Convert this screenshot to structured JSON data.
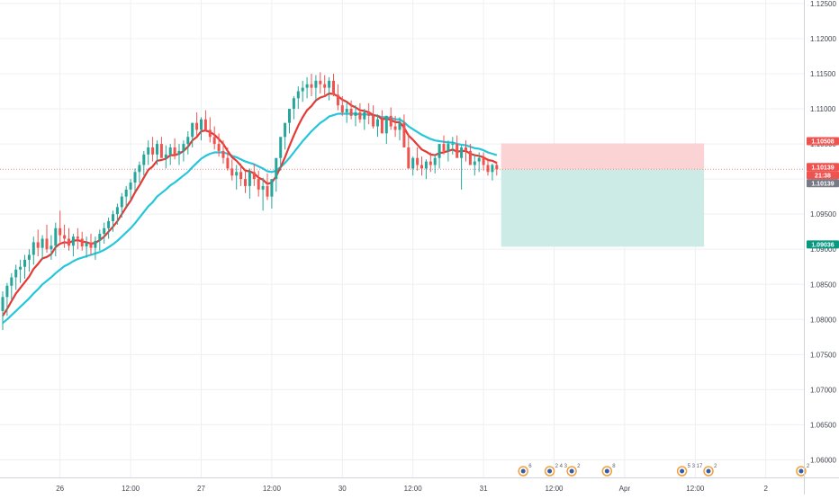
{
  "chart_data": {
    "type": "candlestick",
    "title": "",
    "xlabel": "",
    "ylabel": "",
    "ylim": [
      1.0575,
      1.1255
    ],
    "y_ticks": [
      "1.12500",
      "1.12000",
      "1.11500",
      "1.11000",
      "1.10500",
      "1.10000",
      "1.09500",
      "1.09000",
      "1.08500",
      "1.08000",
      "1.07500",
      "1.07000",
      "1.06500",
      "1.06000"
    ],
    "y_tick_values": [
      1.125,
      1.12,
      1.115,
      1.11,
      1.105,
      1.1,
      1.095,
      1.09,
      1.085,
      1.08,
      1.075,
      1.07,
      1.065,
      1.06
    ],
    "x_ticks": [
      {
        "label": "26",
        "bar": 13
      },
      {
        "label": "12:00",
        "bar": 29
      },
      {
        "label": "27",
        "bar": 45
      },
      {
        "label": "12:00",
        "bar": 61
      },
      {
        "label": "30",
        "bar": 77
      },
      {
        "label": "12:00",
        "bar": 93
      },
      {
        "label": "31",
        "bar": 109
      },
      {
        "label": "12:00",
        "bar": 125
      },
      {
        "label": "Apr",
        "bar": 141
      },
      {
        "label": "12:00",
        "bar": 157
      },
      {
        "label": "2",
        "bar": 173
      }
    ],
    "grid": true,
    "candles": {
      "open": [
        1.0812,
        1.0832,
        1.0848,
        1.086,
        1.0871,
        1.0875,
        1.0885,
        1.0892,
        1.091,
        1.0902,
        1.0915,
        1.09,
        1.0905,
        1.093,
        1.092,
        1.0915,
        1.0905,
        1.0918,
        1.0915,
        1.0904,
        1.0909,
        1.0902,
        1.0912,
        1.0922,
        1.093,
        1.094,
        1.095,
        1.096,
        1.0975,
        1.0985,
        1.0995,
        1.101,
        1.102,
        1.1035,
        1.1045,
        1.1035,
        1.105,
        1.103,
        1.1035,
        1.1045,
        1.1035,
        1.104,
        1.105,
        1.106,
        1.108,
        1.107,
        1.1085,
        1.107,
        1.106,
        1.105,
        1.104,
        1.103,
        1.1015,
        1.1005,
        1.101,
        1.1,
        1.099,
        1.101,
        1.1,
        1.0985,
        1.099,
        1.0975,
        1.1,
        1.103,
        1.106,
        1.108,
        1.11,
        1.1115,
        1.1125,
        1.113,
        1.1135,
        1.113,
        1.114,
        1.1135,
        1.113,
        1.114,
        1.112,
        1.1105,
        1.1095,
        1.11,
        1.109,
        1.1095,
        1.1085,
        1.1095,
        1.109,
        1.1075,
        1.1085,
        1.1065,
        1.109,
        1.1075,
        1.107,
        1.108,
        1.1045,
        1.1015,
        1.103,
        1.102,
        1.1015,
        1.1025,
        1.102,
        1.103,
        1.105,
        1.104,
        1.105,
        1.105,
        1.103,
        1.1045,
        1.104,
        1.102,
        1.1025,
        1.103,
        1.102,
        1.101,
        1.102
      ],
      "high": [
        1.084,
        1.0852,
        1.0866,
        1.0878,
        1.0885,
        1.0892,
        1.09,
        1.0918,
        1.0928,
        1.092,
        1.0935,
        1.092,
        1.0938,
        1.0955,
        1.0935,
        1.093,
        1.0922,
        1.093,
        1.0925,
        1.0918,
        1.0922,
        1.0918,
        1.0928,
        1.0938,
        1.0945,
        1.0955,
        1.0965,
        1.098,
        1.099,
        1.1,
        1.1015,
        1.1025,
        1.104,
        1.1055,
        1.106,
        1.1055,
        1.106,
        1.1048,
        1.105,
        1.1058,
        1.105,
        1.1055,
        1.1068,
        1.108,
        1.1095,
        1.1088,
        1.1098,
        1.1088,
        1.1075,
        1.1065,
        1.1055,
        1.1045,
        1.1028,
        1.102,
        1.1022,
        1.1012,
        1.1015,
        1.1022,
        1.1012,
        1.1002,
        1.1008,
        1.0992,
        1.1018,
        1.1048,
        1.1078,
        1.1098,
        1.1118,
        1.1132,
        1.114,
        1.1145,
        1.115,
        1.1148,
        1.1152,
        1.1148,
        1.1145,
        1.115,
        1.1135,
        1.1118,
        1.111,
        1.1112,
        1.1105,
        1.1108,
        1.11,
        1.1108,
        1.1105,
        1.1092,
        1.1098,
        1.109,
        1.1102,
        1.109,
        1.1088,
        1.1092,
        1.1065,
        1.1032,
        1.1045,
        1.1032,
        1.1028,
        1.1038,
        1.1035,
        1.1048,
        1.1062,
        1.1055,
        1.106,
        1.1062,
        1.1048,
        1.1055,
        1.105,
        1.1035,
        1.1038,
        1.1038,
        1.103,
        1.1022,
        1.1025
      ],
      "low": [
        1.0785,
        1.0805,
        1.0828,
        1.0842,
        1.0852,
        1.0858,
        1.0868,
        1.0878,
        1.089,
        1.0885,
        1.0895,
        1.0885,
        1.089,
        1.091,
        1.0902,
        1.0898,
        1.089,
        1.09,
        1.0898,
        1.0888,
        1.0892,
        1.0885,
        1.0898,
        1.0908,
        1.0915,
        1.0925,
        1.0935,
        1.0945,
        1.096,
        1.097,
        1.0982,
        1.0995,
        1.1005,
        1.102,
        1.1025,
        1.102,
        1.103,
        1.1015,
        1.102,
        1.1028,
        1.102,
        1.1025,
        1.1035,
        1.1045,
        1.1062,
        1.1055,
        1.1068,
        1.1052,
        1.1042,
        1.1032,
        1.1022,
        1.1012,
        1.0998,
        1.0985,
        1.099,
        1.098,
        1.0972,
        1.099,
        1.0975,
        1.0955,
        1.097,
        1.0958,
        1.0982,
        1.1012,
        1.1042,
        1.1065,
        1.1085,
        1.11,
        1.111,
        1.1115,
        1.1118,
        1.1112,
        1.1122,
        1.1118,
        1.1112,
        1.1118,
        1.1098,
        1.109,
        1.108,
        1.1085,
        1.1075,
        1.108,
        1.107,
        1.1078,
        1.1072,
        1.106,
        1.1065,
        1.105,
        1.107,
        1.106,
        1.1055,
        1.106,
        1.1028,
        1.1005,
        1.1012,
        1.1005,
        1.1,
        1.101,
        1.1008,
        1.1015,
        1.1035,
        1.1025,
        1.1035,
        1.1032,
        1.0985,
        1.1025,
        1.1022,
        1.1005,
        1.101,
        1.1012,
        1.1005,
        1.0998,
        1.1005
      ],
      "close": [
        1.0832,
        1.0848,
        1.086,
        1.0871,
        1.0875,
        1.0885,
        1.0892,
        1.091,
        1.0902,
        1.0915,
        1.09,
        1.0905,
        1.093,
        1.092,
        1.0915,
        1.0905,
        1.0918,
        1.0915,
        1.0904,
        1.0909,
        1.0902,
        1.0912,
        1.0922,
        1.093,
        1.094,
        1.095,
        1.096,
        1.0975,
        1.0985,
        1.0995,
        1.101,
        1.102,
        1.1035,
        1.1045,
        1.1035,
        1.105,
        1.103,
        1.1035,
        1.1045,
        1.1035,
        1.104,
        1.105,
        1.106,
        1.108,
        1.107,
        1.1085,
        1.107,
        1.106,
        1.105,
        1.104,
        1.103,
        1.1015,
        1.1005,
        1.101,
        1.1,
        1.099,
        1.101,
        1.1,
        1.0985,
        1.099,
        1.0975,
        1.1,
        1.103,
        1.106,
        1.108,
        1.11,
        1.1115,
        1.1125,
        1.113,
        1.1135,
        1.113,
        1.114,
        1.1135,
        1.113,
        1.114,
        1.112,
        1.1105,
        1.1095,
        1.11,
        1.109,
        1.1095,
        1.1085,
        1.1095,
        1.109,
        1.1075,
        1.1085,
        1.1065,
        1.109,
        1.1075,
        1.107,
        1.108,
        1.1045,
        1.1015,
        1.103,
        1.102,
        1.1015,
        1.1025,
        1.102,
        1.103,
        1.105,
        1.104,
        1.105,
        1.105,
        1.103,
        1.1045,
        1.104,
        1.102,
        1.1025,
        1.103,
        1.102,
        1.101,
        1.102,
        1.1014
      ]
    },
    "ema_fast": [
      1.0805,
      1.0815,
      1.0826,
      1.0837,
      1.0845,
      1.0853,
      1.0861,
      1.0872,
      1.0879,
      1.0887,
      1.0889,
      1.0893,
      1.0903,
      1.0908,
      1.091,
      1.0909,
      1.0912,
      1.0913,
      1.0911,
      1.091,
      1.0908,
      1.0909,
      1.0913,
      1.0918,
      1.0925,
      1.0932,
      1.094,
      1.095,
      1.096,
      1.0969,
      1.0981,
      1.0991,
      1.1002,
      1.1013,
      1.1018,
      1.1026,
      1.1027,
      1.1029,
      1.1034,
      1.1034,
      1.1036,
      1.104,
      1.1046,
      1.1055,
      1.106,
      1.1068,
      1.1069,
      1.1067,
      1.1063,
      1.1057,
      1.105,
      1.104,
      1.1031,
      1.1026,
      1.1019,
      1.1012,
      1.1011,
      1.1008,
      1.1002,
      1.0999,
      1.0993,
      1.0995,
      1.1004,
      1.1017,
      1.1031,
      1.1047,
      1.1062,
      1.1076,
      1.1088,
      1.1098,
      1.1104,
      1.1112,
      1.1116,
      1.1118,
      1.1122,
      1.1121,
      1.1118,
      1.1113,
      1.111,
      1.1105,
      1.1102,
      1.1098,
      1.1097,
      1.1095,
      1.1091,
      1.109,
      1.1085,
      1.1086,
      1.1084,
      1.1081,
      1.1081,
      1.1073,
      1.1062,
      1.1056,
      1.1049,
      1.1042,
      1.1039,
      1.1035,
      1.1034,
      1.1037,
      1.1038,
      1.104,
      1.1042,
      1.1039,
      1.104,
      1.104,
      1.1036,
      1.1034,
      1.1033,
      1.1031,
      1.1027,
      1.1026,
      1.1023
    ],
    "ema_slow": [
      1.0795,
      1.08,
      1.0806,
      1.0812,
      1.0818,
      1.0824,
      1.083,
      1.0837,
      1.0843,
      1.085,
      1.0855,
      1.086,
      1.0866,
      1.0871,
      1.0876,
      1.0879,
      1.0883,
      1.0886,
      1.0888,
      1.089,
      1.0892,
      1.0894,
      1.0896,
      1.0899,
      1.0903,
      1.0907,
      1.0912,
      1.0918,
      1.0924,
      1.093,
      1.0937,
      1.0945,
      1.0953,
      1.0961,
      1.0967,
      1.0975,
      1.098,
      1.0985,
      1.0991,
      1.0995,
      1.1,
      1.1005,
      1.101,
      1.1017,
      1.1023,
      1.1029,
      1.1033,
      1.1036,
      1.1038,
      1.1038,
      1.1038,
      1.1036,
      1.1033,
      1.1031,
      1.1028,
      1.1025,
      1.1023,
      1.1021,
      1.1018,
      1.1015,
      1.1011,
      1.101,
      1.1012,
      1.1017,
      1.1023,
      1.103,
      1.1038,
      1.1046,
      1.1054,
      1.1061,
      1.1068,
      1.1074,
      1.108,
      1.1084,
      1.1089,
      1.1091,
      1.1093,
      1.1093,
      1.1093,
      1.1093,
      1.1093,
      1.1092,
      1.1092,
      1.1092,
      1.1091,
      1.109,
      1.1088,
      1.1088,
      1.1087,
      1.1085,
      1.1085,
      1.1081,
      1.1075,
      1.1071,
      1.1067,
      1.1063,
      1.106,
      1.1057,
      1.1055,
      1.1054,
      1.1053,
      1.1052,
      1.1052,
      1.105,
      1.1049,
      1.1048,
      1.1046,
      1.1044,
      1.1043,
      1.1041,
      1.1038,
      1.1036,
      1.1034
    ],
    "position": {
      "start_bar": 113,
      "end_bar": 159,
      "entry": 1.10139,
      "stop": 1.10508,
      "target": 1.09036
    },
    "price_labels": [
      {
        "text": "1.10508",
        "value": 1.10508,
        "color": "#ef5350"
      },
      {
        "text": "1.10139",
        "value": 1.10139,
        "color": "#ef5350"
      },
      {
        "text": "21:38",
        "value": 1.10139,
        "color": "#ef5350"
      },
      {
        "text": "1.10139",
        "value": 1.10139,
        "color": "#787b86"
      },
      {
        "text": "1.09036",
        "value": 1.09036,
        "color": "#089981"
      }
    ],
    "event_markers": [
      {
        "bar": 118,
        "text": "6"
      },
      {
        "bar": 124,
        "text": "2 4 3"
      },
      {
        "bar": 129,
        "text": "2"
      },
      {
        "bar": 137,
        "text": "8"
      },
      {
        "bar": 154,
        "text": "5 3 17"
      },
      {
        "bar": 160,
        "text": "2"
      },
      {
        "bar": 181,
        "text": "2"
      }
    ],
    "colors": {
      "up": "#26a69a",
      "down": "#ef5350",
      "ema_fast": "#e53935",
      "ema_slow": "#26c6da",
      "grid": "#edf0f3",
      "axis_text": "#434651",
      "stop_zone": "#fbd3d4",
      "target_zone": "#cdebe6"
    }
  }
}
